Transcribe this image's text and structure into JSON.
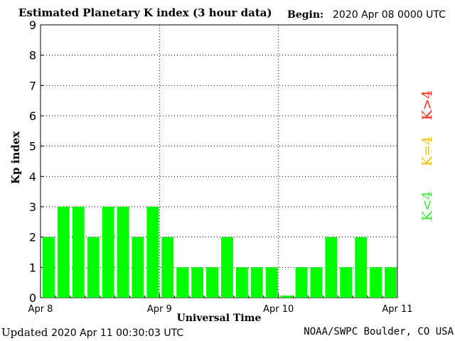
{
  "header": {
    "title": "Estimated Planetary K index (3 hour data)",
    "begin_label": "Begin:",
    "begin_value": "2020 Apr 08 0000 UTC"
  },
  "footer": {
    "updated_label": "Updated",
    "updated_value": "2020 Apr 11 00:30:03 UTC",
    "source": "NOAA/SWPC Boulder, CO USA"
  },
  "legend": {
    "items": [
      {
        "label": "K<4",
        "color": "#33ee33"
      },
      {
        "label": "K=4",
        "color": "#f5c000"
      },
      {
        "label": "K>4",
        "color": "#ff2a10"
      }
    ]
  },
  "colors": {
    "bar": "#00ff00",
    "grid": "#000000"
  },
  "chart_data": {
    "type": "bar",
    "title": "Estimated Planetary K index (3 hour data)",
    "xlabel": "Universal Time",
    "ylabel": "Kp index",
    "ylim": [
      0,
      9
    ],
    "yticks": [
      0,
      1,
      2,
      3,
      4,
      5,
      6,
      7,
      8,
      9
    ],
    "xticks": [
      "Apr 8",
      "Apr 9",
      "Apr 10",
      "Apr 11"
    ],
    "grid": true,
    "values": [
      2,
      3,
      3,
      2,
      3,
      3,
      2,
      3,
      2,
      1,
      1,
      1,
      2,
      1,
      1,
      1,
      0.07,
      1,
      1,
      2,
      1,
      2,
      1,
      1
    ]
  }
}
